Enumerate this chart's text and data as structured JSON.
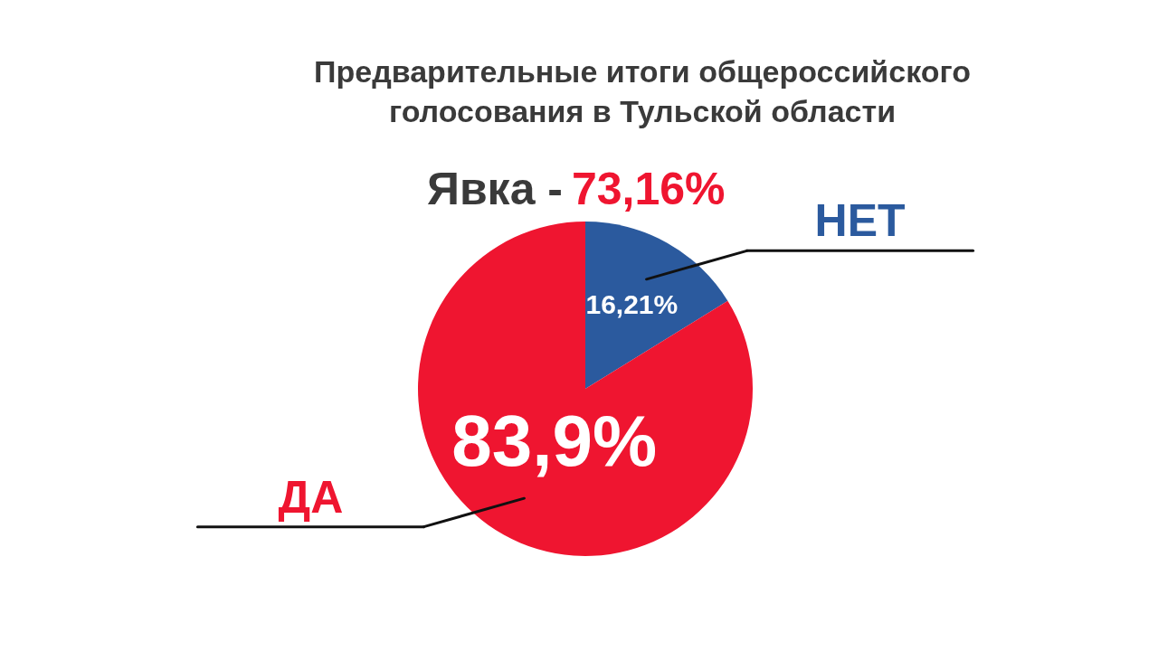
{
  "chart_data": {
    "type": "pie",
    "title": "Предварительные итоги общероссийского\nголосования  в Тульской области",
    "subtitle": "Явка - 73,16%",
    "categories": [
      "НЕТ",
      "ДА"
    ],
    "values": [
      16.21,
      83.9
    ],
    "colors": [
      "#2b5a9e",
      "#ef1530"
    ],
    "value_labels": [
      "16,21%",
      "83,9%"
    ]
  }
}
